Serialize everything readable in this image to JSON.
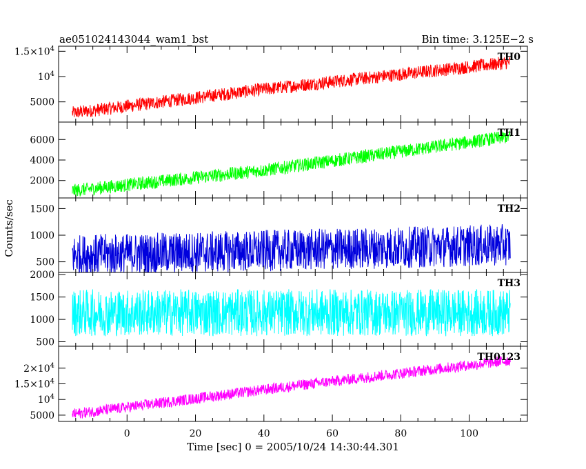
{
  "header": {
    "title": "ae051024143044_wam1_bst",
    "bin_time": "Bin time: 3.125E−2 s"
  },
  "axes": {
    "xlabel": "Time [sec] 0 = 2005/10/24 14:30:44.301",
    "ylabel": "Counts/sec"
  },
  "chart_data": {
    "type": "line",
    "title": "ae051024143044_wam1_bst",
    "xlabel": "Time [sec] 0 = 2005/10/24 14:30:44.301",
    "ylabel": "Counts/sec",
    "xlim": [
      -20,
      117
    ],
    "x_range": [
      -16,
      112
    ],
    "x_ticks": [
      0,
      20,
      40,
      60,
      80,
      100
    ],
    "x_tick_labels": [
      "0",
      "20",
      "40",
      "60",
      "80",
      "100"
    ],
    "grid": false,
    "panels": [
      {
        "name": "TH0",
        "color": "#ff0000",
        "ylim": [
          1000,
          16000
        ],
        "yticks": [
          {
            "value": 5000,
            "label": "5000"
          },
          {
            "value": 10000,
            "label": "10",
            "sup": "4"
          },
          {
            "value": 15000,
            "label": "1.5×10",
            "sup": "4"
          }
        ],
        "trend": [
          {
            "x": -16,
            "y": 2800
          },
          {
            "x": 40,
            "y": 7500
          },
          {
            "x": 112,
            "y": 12800
          }
        ],
        "noise": 2600
      },
      {
        "name": "TH1",
        "color": "#00ff00",
        "ylim": [
          300,
          7700
        ],
        "yticks": [
          {
            "value": 2000,
            "label": "2000"
          },
          {
            "value": 4000,
            "label": "4000"
          },
          {
            "value": 6000,
            "label": "6000"
          }
        ],
        "trend": [
          {
            "x": -16,
            "y": 1000
          },
          {
            "x": 40,
            "y": 3000
          },
          {
            "x": 112,
            "y": 6300
          }
        ],
        "noise": 1300
      },
      {
        "name": "TH2",
        "color": "#0000dd",
        "ylim": [
          300,
          1700
        ],
        "yticks": [
          {
            "value": 500,
            "label": "500"
          },
          {
            "value": 1000,
            "label": "1000"
          },
          {
            "value": 1500,
            "label": "1500"
          }
        ],
        "trend": [
          {
            "x": -16,
            "y": 620
          },
          {
            "x": 112,
            "y": 820
          }
        ],
        "noise": 780
      },
      {
        "name": "TH3",
        "color": "#00ffff",
        "ylim": [
          400,
          2050
        ],
        "yticks": [
          {
            "value": 500,
            "label": "500"
          },
          {
            "value": 1000,
            "label": "1000"
          },
          {
            "value": 1500,
            "label": "1500"
          },
          {
            "value": 2000,
            "label": "2000"
          }
        ],
        "trend": [
          {
            "x": -16,
            "y": 1150
          },
          {
            "x": 112,
            "y": 1150
          }
        ],
        "noise": 1050
      },
      {
        "name": "TH0123",
        "color": "#ff00ff",
        "ylim": [
          3000,
          27000
        ],
        "yticks": [
          {
            "value": 5000,
            "label": "5000"
          },
          {
            "value": 10000,
            "label": "10",
            "sup": "4"
          },
          {
            "value": 15000,
            "label": "1.5×10",
            "sup": "4"
          },
          {
            "value": 20000,
            "label": "2×10",
            "sup": "4"
          }
        ],
        "trend": [
          {
            "x": -16,
            "y": 5300
          },
          {
            "x": 50,
            "y": 14500
          },
          {
            "x": 112,
            "y": 22500
          }
        ],
        "noise": 3500
      }
    ]
  }
}
